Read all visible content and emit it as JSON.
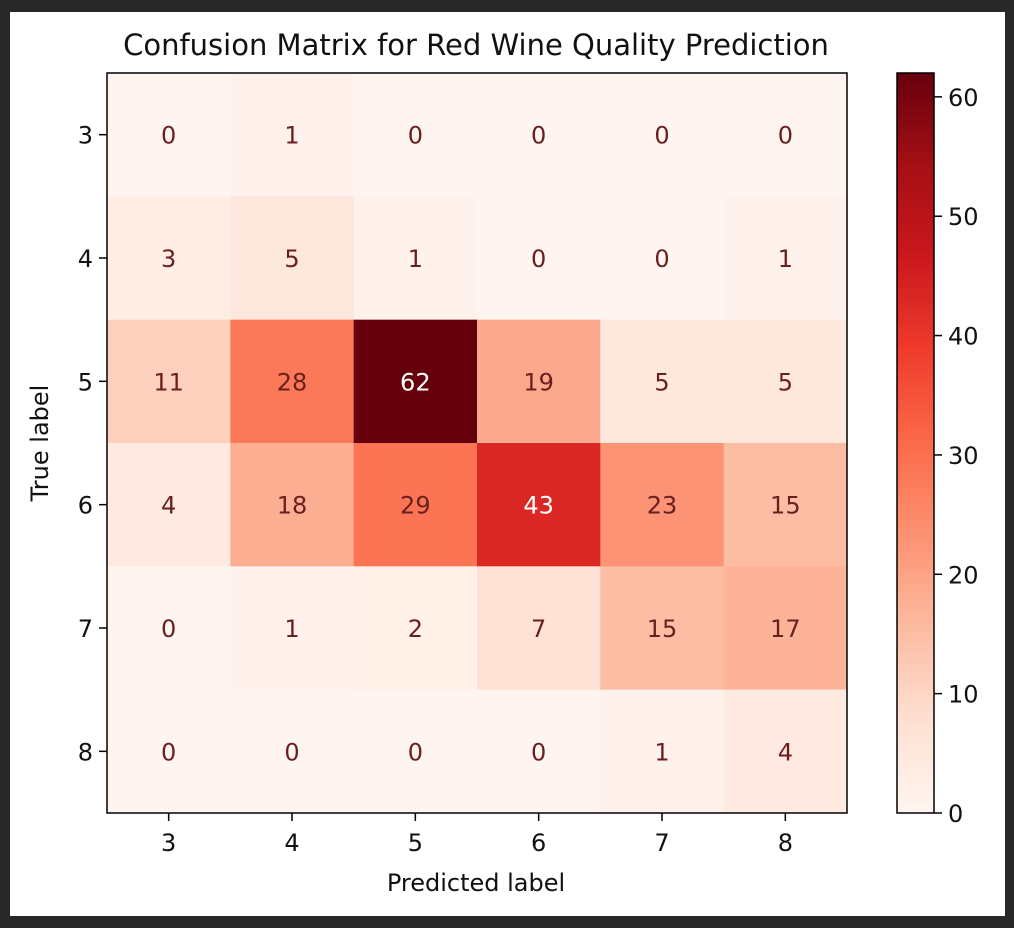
{
  "chart_data": {
    "type": "heatmap",
    "title": "Confusion Matrix for Red Wine Quality Prediction",
    "xlabel": "Predicted label",
    "ylabel": "True label",
    "x_categories": [
      "3",
      "4",
      "5",
      "6",
      "7",
      "8"
    ],
    "y_categories": [
      "3",
      "4",
      "5",
      "6",
      "7",
      "8"
    ],
    "matrix": [
      [
        0,
        1,
        0,
        0,
        0,
        0
      ],
      [
        3,
        5,
        1,
        0,
        0,
        1
      ],
      [
        11,
        28,
        62,
        19,
        5,
        5
      ],
      [
        4,
        18,
        29,
        43,
        23,
        15
      ],
      [
        0,
        1,
        2,
        7,
        15,
        17
      ],
      [
        0,
        0,
        0,
        0,
        1,
        4
      ]
    ],
    "colorbar": {
      "colormap": "Reds",
      "vmin": 0,
      "vmax": 62,
      "ticks": [
        "0",
        "10",
        "20",
        "30",
        "40",
        "50",
        "60"
      ]
    },
    "grid": false,
    "colors": {
      "background": "#272727",
      "figure": "#ffffff",
      "dark_text": "#6a1f1f",
      "light_text": "#ffffff"
    }
  }
}
